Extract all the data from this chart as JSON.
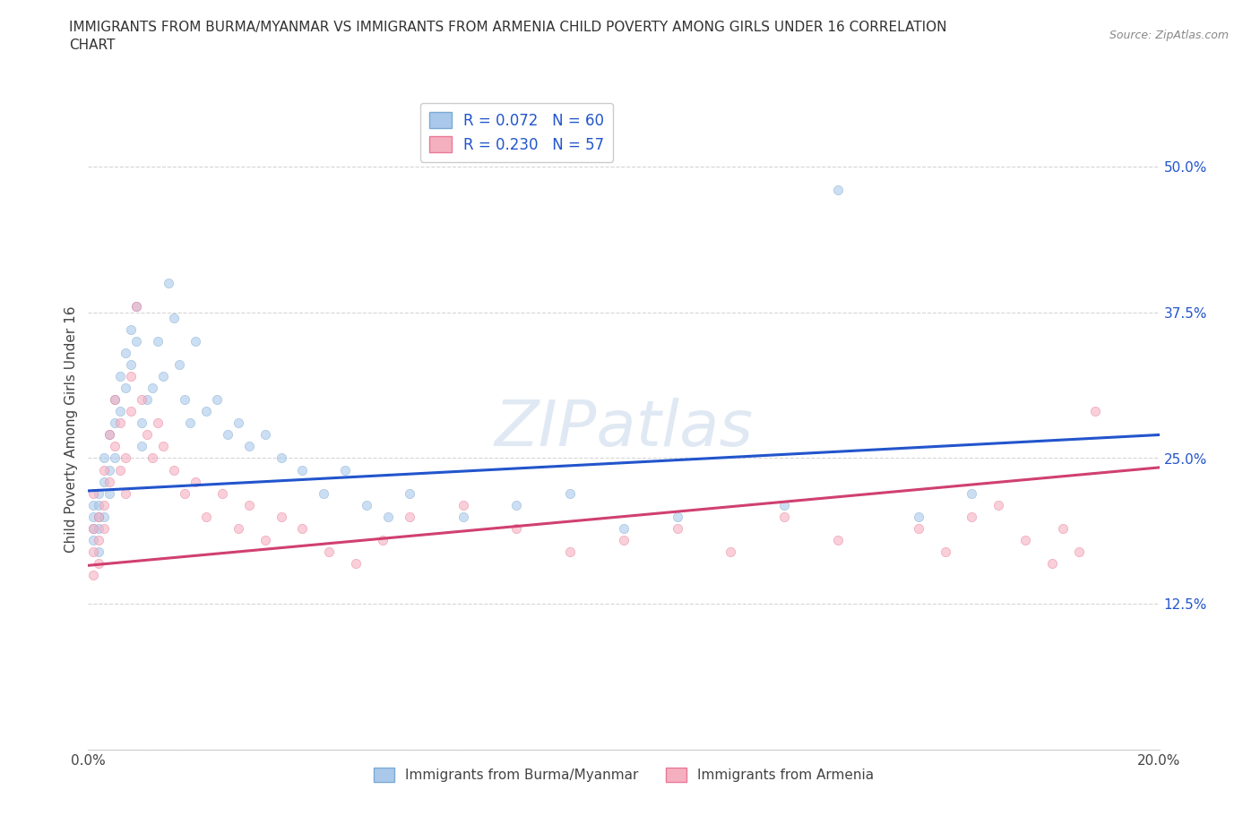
{
  "title": "IMMIGRANTS FROM BURMA/MYANMAR VS IMMIGRANTS FROM ARMENIA CHILD POVERTY AMONG GIRLS UNDER 16 CORRELATION\nCHART",
  "source_text": "Source: ZipAtlas.com",
  "ylabel": "Child Poverty Among Girls Under 16",
  "xlim": [
    0.0,
    0.2
  ],
  "ylim": [
    0.0,
    0.55
  ],
  "series1_label": "Immigrants from Burma/Myanmar",
  "series2_label": "Immigrants from Armenia",
  "series1_color": "#aac8ea",
  "series2_color": "#f5b0c0",
  "series1_edge": "#7aaad4",
  "series2_edge": "#e87898",
  "line1_color": "#2255cc",
  "line2_color": "#d04070",
  "R1": 0.072,
  "N1": 60,
  "R2": 0.23,
  "N2": 57,
  "legend_R_color": "#2255cc",
  "watermark": "ZIPatlas",
  "grid_color": "#cccccc",
  "background_color": "#ffffff",
  "scatter_size": 55,
  "scatter_alpha": 0.6,
  "line1_x0": 0.0,
  "line1_y0": 0.222,
  "line1_x1": 0.2,
  "line1_y1": 0.27,
  "line2_x0": 0.0,
  "line2_y0": 0.158,
  "line2_x1": 0.2,
  "line2_y1": 0.242,
  "s1_x": [
    0.001,
    0.001,
    0.001,
    0.001,
    0.002,
    0.002,
    0.002,
    0.002,
    0.002,
    0.003,
    0.003,
    0.003,
    0.004,
    0.004,
    0.004,
    0.005,
    0.005,
    0.005,
    0.006,
    0.006,
    0.007,
    0.007,
    0.008,
    0.008,
    0.009,
    0.009,
    0.01,
    0.01,
    0.011,
    0.012,
    0.013,
    0.014,
    0.015,
    0.016,
    0.017,
    0.018,
    0.019,
    0.02,
    0.022,
    0.024,
    0.026,
    0.028,
    0.03,
    0.033,
    0.036,
    0.04,
    0.044,
    0.048,
    0.052,
    0.056,
    0.06,
    0.07,
    0.08,
    0.09,
    0.1,
    0.11,
    0.13,
    0.14,
    0.155,
    0.165
  ],
  "s1_y": [
    0.21,
    0.2,
    0.19,
    0.18,
    0.22,
    0.21,
    0.2,
    0.19,
    0.17,
    0.23,
    0.25,
    0.2,
    0.27,
    0.24,
    0.22,
    0.3,
    0.28,
    0.25,
    0.32,
    0.29,
    0.34,
    0.31,
    0.36,
    0.33,
    0.38,
    0.35,
    0.28,
    0.26,
    0.3,
    0.31,
    0.35,
    0.32,
    0.4,
    0.37,
    0.33,
    0.3,
    0.28,
    0.35,
    0.29,
    0.3,
    0.27,
    0.28,
    0.26,
    0.27,
    0.25,
    0.24,
    0.22,
    0.24,
    0.21,
    0.2,
    0.22,
    0.2,
    0.21,
    0.22,
    0.19,
    0.2,
    0.21,
    0.48,
    0.2,
    0.22
  ],
  "s2_x": [
    0.001,
    0.001,
    0.001,
    0.001,
    0.002,
    0.002,
    0.002,
    0.003,
    0.003,
    0.003,
    0.004,
    0.004,
    0.005,
    0.005,
    0.006,
    0.006,
    0.007,
    0.007,
    0.008,
    0.008,
    0.009,
    0.01,
    0.011,
    0.012,
    0.013,
    0.014,
    0.016,
    0.018,
    0.02,
    0.022,
    0.025,
    0.028,
    0.03,
    0.033,
    0.036,
    0.04,
    0.045,
    0.05,
    0.055,
    0.06,
    0.07,
    0.08,
    0.09,
    0.1,
    0.11,
    0.12,
    0.13,
    0.14,
    0.155,
    0.16,
    0.165,
    0.17,
    0.175,
    0.18,
    0.182,
    0.185,
    0.188
  ],
  "s2_y": [
    0.22,
    0.19,
    0.17,
    0.15,
    0.2,
    0.18,
    0.16,
    0.24,
    0.21,
    0.19,
    0.27,
    0.23,
    0.3,
    0.26,
    0.28,
    0.24,
    0.25,
    0.22,
    0.32,
    0.29,
    0.38,
    0.3,
    0.27,
    0.25,
    0.28,
    0.26,
    0.24,
    0.22,
    0.23,
    0.2,
    0.22,
    0.19,
    0.21,
    0.18,
    0.2,
    0.19,
    0.17,
    0.16,
    0.18,
    0.2,
    0.21,
    0.19,
    0.17,
    0.18,
    0.19,
    0.17,
    0.2,
    0.18,
    0.19,
    0.17,
    0.2,
    0.21,
    0.18,
    0.16,
    0.19,
    0.17,
    0.29
  ]
}
